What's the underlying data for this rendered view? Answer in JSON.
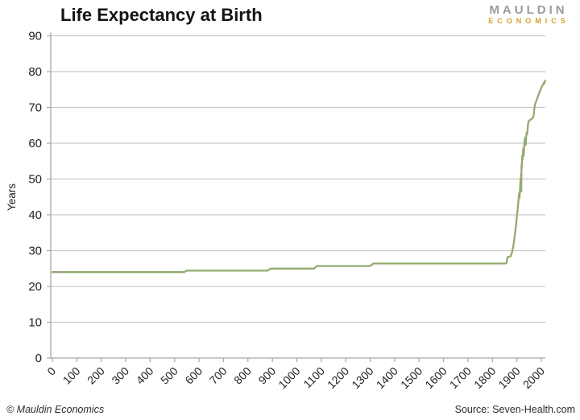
{
  "header": {
    "title": "Life Expectancy at Birth"
  },
  "logo": {
    "line1": "MAULDIN",
    "line2": "ECONOMICS",
    "gray": "#9b9b9b",
    "gold": "#d2a02a"
  },
  "footer": {
    "copyright": "© Mauldin Economics",
    "source": "Source: Seven-Health.com"
  },
  "chart_data": {
    "type": "line",
    "title": "Life Expectancy at Birth",
    "xlabel": "",
    "ylabel": "Years",
    "xlim": [
      0,
      2020
    ],
    "ylim": [
      0,
      90
    ],
    "x_ticks": [
      0,
      100,
      200,
      300,
      400,
      500,
      600,
      700,
      800,
      900,
      1000,
      1100,
      1200,
      1300,
      1400,
      1500,
      1600,
      1700,
      1800,
      1900,
      2000
    ],
    "y_ticks": [
      0,
      10,
      20,
      30,
      40,
      50,
      60,
      70,
      80,
      90
    ],
    "grid": "horizontal",
    "legend": "none",
    "line_color": "#93aa71",
    "gridline_color": "#c9c9c9",
    "axis_color": "#a6a6a6",
    "tick_label_color": "#1f1f1f",
    "points": [
      [
        0,
        24
      ],
      [
        120,
        24
      ],
      [
        250,
        24
      ],
      [
        400,
        24
      ],
      [
        540,
        24
      ],
      [
        548,
        24.4
      ],
      [
        700,
        24.4
      ],
      [
        880,
        24.4
      ],
      [
        893,
        25
      ],
      [
        1070,
        25
      ],
      [
        1082,
        25.7
      ],
      [
        1300,
        25.7
      ],
      [
        1313,
        26.4
      ],
      [
        1500,
        26.4
      ],
      [
        1700,
        26.4
      ],
      [
        1850,
        26.4
      ],
      [
        1857,
        26.5
      ],
      [
        1862,
        28.2
      ],
      [
        1874,
        28.4
      ],
      [
        1880,
        29.5
      ],
      [
        1886,
        31.5
      ],
      [
        1892,
        34.5
      ],
      [
        1898,
        38
      ],
      [
        1903,
        41.5
      ],
      [
        1907,
        44.5
      ],
      [
        1909,
        46
      ],
      [
        1911,
        44.8
      ],
      [
        1913,
        47.5
      ],
      [
        1915,
        50
      ],
      [
        1916,
        47.5
      ],
      [
        1917,
        51.5
      ],
      [
        1918,
        46.5
      ],
      [
        1919,
        54
      ],
      [
        1920,
        53
      ],
      [
        1922,
        56.5
      ],
      [
        1924,
        55.5
      ],
      [
        1926,
        58.5
      ],
      [
        1928,
        56.5
      ],
      [
        1930,
        59.5
      ],
      [
        1931,
        60.5
      ],
      [
        1933,
        61.5
      ],
      [
        1935,
        60.5
      ],
      [
        1936,
        59.5
      ],
      [
        1938,
        62
      ],
      [
        1940,
        63
      ],
      [
        1942,
        62.5
      ],
      [
        1944,
        64
      ],
      [
        1946,
        65.5
      ],
      [
        1948,
        66
      ],
      [
        1950,
        66.3
      ],
      [
        1954,
        66.5
      ],
      [
        1958,
        66.7
      ],
      [
        1962,
        66.9
      ],
      [
        1966,
        67.1
      ],
      [
        1969,
        68
      ],
      [
        1972,
        70
      ],
      [
        1975,
        71
      ],
      [
        1979,
        71.7
      ],
      [
        1983,
        72.5
      ],
      [
        1987,
        73.3
      ],
      [
        1991,
        74
      ],
      [
        1995,
        74.7
      ],
      [
        1999,
        75.3
      ],
      [
        2003,
        75.9
      ],
      [
        2007,
        76.4
      ],
      [
        2010,
        76.8
      ],
      [
        2012,
        76.6
      ],
      [
        2014,
        77.1
      ],
      [
        2015,
        77.5
      ]
    ]
  }
}
